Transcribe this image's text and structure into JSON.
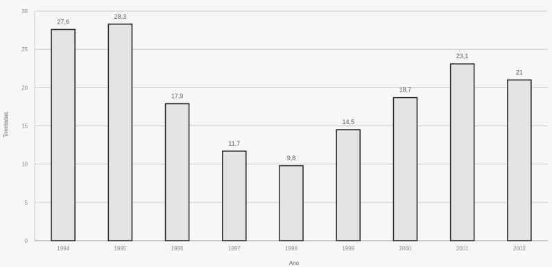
{
  "chart_data": {
    "type": "bar",
    "title": "",
    "xlabel": "Ano",
    "ylabel": "Toneladas",
    "categories": [
      "1994",
      "1995",
      "1996",
      "1997",
      "1998",
      "1999",
      "2000",
      "2001",
      "2002"
    ],
    "values": [
      27.6,
      28.3,
      17.9,
      11.7,
      9.8,
      14.5,
      18.7,
      23.1,
      21
    ],
    "data_labels": [
      "27,6",
      "28,3",
      "17,9",
      "11,7",
      "9,8",
      "14,5",
      "18,7",
      "23,1",
      "21"
    ],
    "yticks": [
      0,
      5,
      10,
      15,
      20,
      25,
      30
    ],
    "ylim": [
      0,
      30
    ],
    "grid": true,
    "legend": "none",
    "bar_color": "#e4e4e2",
    "bar_edge_color": "#222222"
  }
}
